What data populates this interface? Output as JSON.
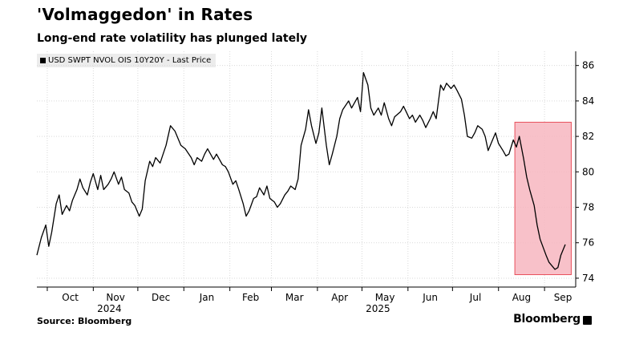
{
  "title": "'Volmaggedon' in Rates",
  "subtitle": "Long-end rate volatility has plunged lately",
  "source": "Source: Bloomberg",
  "brand": "Bloomberg",
  "colors": {
    "line": "#000000",
    "highlight": "#f7b6bf",
    "highlight_border": "#e8505b",
    "grid": "#d9d9d9"
  },
  "chart_data": {
    "type": "line",
    "legend": "USD SWPT NVOL OIS 10Y20Y - Last Price",
    "ylim": [
      73.5,
      86.8
    ],
    "y_ticks": [
      74,
      76,
      78,
      80,
      82,
      84,
      86
    ],
    "y_axis_side": "right",
    "grid": true,
    "x_ticks": [
      {
        "label": "Oct",
        "date": "2024-10-01"
      },
      {
        "label": "Nov",
        "date": "2024-11-01"
      },
      {
        "label": "Dec",
        "date": "2024-12-01"
      },
      {
        "label": "Jan",
        "date": "2025-01-01"
      },
      {
        "label": "Feb",
        "date": "2025-02-01"
      },
      {
        "label": "Mar",
        "date": "2025-03-01"
      },
      {
        "label": "Apr",
        "date": "2025-04-01"
      },
      {
        "label": "May",
        "date": "2025-05-01"
      },
      {
        "label": "Jun",
        "date": "2025-06-01"
      },
      {
        "label": "Jul",
        "date": "2025-07-01"
      },
      {
        "label": "Aug",
        "date": "2025-08-01"
      },
      {
        "label": "Sep",
        "date": "2025-09-01"
      }
    ],
    "year_labels": [
      {
        "label": "2024",
        "date": "2024-11-01"
      },
      {
        "label": "2025",
        "date": "2025-05-01"
      }
    ],
    "highlight": {
      "x_start": "2025-08-12",
      "x_end": "2025-09-19",
      "y_start": 74.2,
      "y_end": 82.8
    },
    "series": [
      {
        "values": [
          [
            "2024-09-24",
            75.3
          ],
          [
            "2024-09-27",
            76.3
          ],
          [
            "2024-09-30",
            77.0
          ],
          [
            "2024-10-02",
            75.8
          ],
          [
            "2024-10-04",
            76.6
          ],
          [
            "2024-10-07",
            78.2
          ],
          [
            "2024-10-09",
            78.7
          ],
          [
            "2024-10-11",
            77.6
          ],
          [
            "2024-10-14",
            78.1
          ],
          [
            "2024-10-16",
            77.8
          ],
          [
            "2024-10-18",
            78.4
          ],
          [
            "2024-10-21",
            79.0
          ],
          [
            "2024-10-23",
            79.6
          ],
          [
            "2024-10-25",
            79.1
          ],
          [
            "2024-10-28",
            78.7
          ],
          [
            "2024-10-30",
            79.4
          ],
          [
            "2024-11-01",
            79.9
          ],
          [
            "2024-11-04",
            79.0
          ],
          [
            "2024-11-06",
            79.8
          ],
          [
            "2024-11-08",
            79.0
          ],
          [
            "2024-11-11",
            79.3
          ],
          [
            "2024-11-13",
            79.6
          ],
          [
            "2024-11-15",
            80.0
          ],
          [
            "2024-11-18",
            79.3
          ],
          [
            "2024-11-20",
            79.7
          ],
          [
            "2024-11-22",
            79.0
          ],
          [
            "2024-11-25",
            78.8
          ],
          [
            "2024-11-27",
            78.3
          ],
          [
            "2024-11-29",
            78.1
          ],
          [
            "2024-12-02",
            77.5
          ],
          [
            "2024-12-04",
            77.9
          ],
          [
            "2024-12-06",
            79.5
          ],
          [
            "2024-12-09",
            80.6
          ],
          [
            "2024-12-11",
            80.3
          ],
          [
            "2024-12-13",
            80.8
          ],
          [
            "2024-12-16",
            80.5
          ],
          [
            "2024-12-18",
            81.0
          ],
          [
            "2024-12-20",
            81.5
          ],
          [
            "2024-12-23",
            82.6
          ],
          [
            "2024-12-26",
            82.3
          ],
          [
            "2024-12-30",
            81.5
          ],
          [
            "2025-01-02",
            81.3
          ],
          [
            "2025-01-06",
            80.8
          ],
          [
            "2025-01-08",
            80.4
          ],
          [
            "2025-01-10",
            80.8
          ],
          [
            "2025-01-13",
            80.6
          ],
          [
            "2025-01-15",
            81.0
          ],
          [
            "2025-01-17",
            81.3
          ],
          [
            "2025-01-21",
            80.7
          ],
          [
            "2025-01-23",
            81.0
          ],
          [
            "2025-01-27",
            80.4
          ],
          [
            "2025-01-29",
            80.3
          ],
          [
            "2025-01-31",
            80.0
          ],
          [
            "2025-02-03",
            79.3
          ],
          [
            "2025-02-05",
            79.5
          ],
          [
            "2025-02-07",
            79.0
          ],
          [
            "2025-02-10",
            78.2
          ],
          [
            "2025-02-12",
            77.5
          ],
          [
            "2025-02-14",
            77.8
          ],
          [
            "2025-02-17",
            78.5
          ],
          [
            "2025-02-19",
            78.6
          ],
          [
            "2025-02-21",
            79.1
          ],
          [
            "2025-02-24",
            78.7
          ],
          [
            "2025-02-26",
            79.2
          ],
          [
            "2025-02-28",
            78.5
          ],
          [
            "2025-03-03",
            78.3
          ],
          [
            "2025-03-05",
            78.0
          ],
          [
            "2025-03-07",
            78.2
          ],
          [
            "2025-03-10",
            78.7
          ],
          [
            "2025-03-12",
            78.9
          ],
          [
            "2025-03-14",
            79.2
          ],
          [
            "2025-03-17",
            79.0
          ],
          [
            "2025-03-19",
            79.6
          ],
          [
            "2025-03-21",
            81.5
          ],
          [
            "2025-03-24",
            82.4
          ],
          [
            "2025-03-26",
            83.5
          ],
          [
            "2025-03-28",
            82.6
          ],
          [
            "2025-03-31",
            81.6
          ],
          [
            "2025-04-02",
            82.2
          ],
          [
            "2025-04-04",
            83.6
          ],
          [
            "2025-04-07",
            81.5
          ],
          [
            "2025-04-09",
            80.4
          ],
          [
            "2025-04-11",
            81.0
          ],
          [
            "2025-04-14",
            82.0
          ],
          [
            "2025-04-16",
            83.0
          ],
          [
            "2025-04-18",
            83.5
          ],
          [
            "2025-04-22",
            84.0
          ],
          [
            "2025-04-24",
            83.6
          ],
          [
            "2025-04-28",
            84.2
          ],
          [
            "2025-04-30",
            83.4
          ],
          [
            "2025-05-02",
            85.6
          ],
          [
            "2025-05-05",
            84.9
          ],
          [
            "2025-05-07",
            83.6
          ],
          [
            "2025-05-09",
            83.2
          ],
          [
            "2025-05-12",
            83.6
          ],
          [
            "2025-05-14",
            83.2
          ],
          [
            "2025-05-16",
            83.9
          ],
          [
            "2025-05-19",
            83.0
          ],
          [
            "2025-05-21",
            82.6
          ],
          [
            "2025-05-23",
            83.1
          ],
          [
            "2025-05-27",
            83.4
          ],
          [
            "2025-05-29",
            83.7
          ],
          [
            "2025-06-02",
            83.0
          ],
          [
            "2025-06-04",
            83.2
          ],
          [
            "2025-06-06",
            82.8
          ],
          [
            "2025-06-09",
            83.2
          ],
          [
            "2025-06-11",
            82.9
          ],
          [
            "2025-06-13",
            82.5
          ],
          [
            "2025-06-16",
            83.0
          ],
          [
            "2025-06-18",
            83.4
          ],
          [
            "2025-06-20",
            83.0
          ],
          [
            "2025-06-23",
            84.9
          ],
          [
            "2025-06-25",
            84.6
          ],
          [
            "2025-06-27",
            85.0
          ],
          [
            "2025-06-30",
            84.7
          ],
          [
            "2025-07-02",
            84.9
          ],
          [
            "2025-07-04",
            84.6
          ],
          [
            "2025-07-07",
            84.1
          ],
          [
            "2025-07-09",
            83.2
          ],
          [
            "2025-07-11",
            82.0
          ],
          [
            "2025-07-14",
            81.9
          ],
          [
            "2025-07-16",
            82.2
          ],
          [
            "2025-07-18",
            82.6
          ],
          [
            "2025-07-21",
            82.4
          ],
          [
            "2025-07-23",
            82.0
          ],
          [
            "2025-07-25",
            81.2
          ],
          [
            "2025-07-28",
            81.8
          ],
          [
            "2025-07-30",
            82.2
          ],
          [
            "2025-08-01",
            81.6
          ],
          [
            "2025-08-04",
            81.2
          ],
          [
            "2025-08-06",
            80.9
          ],
          [
            "2025-08-08",
            81.0
          ],
          [
            "2025-08-11",
            81.8
          ],
          [
            "2025-08-13",
            81.4
          ],
          [
            "2025-08-15",
            82.0
          ],
          [
            "2025-08-18",
            80.7
          ],
          [
            "2025-08-20",
            79.7
          ],
          [
            "2025-08-22",
            79.0
          ],
          [
            "2025-08-25",
            78.1
          ],
          [
            "2025-08-27",
            77.0
          ],
          [
            "2025-08-29",
            76.2
          ],
          [
            "2025-09-02",
            75.3
          ],
          [
            "2025-09-04",
            74.9
          ],
          [
            "2025-09-08",
            74.5
          ],
          [
            "2025-09-10",
            74.6
          ],
          [
            "2025-09-12",
            75.3
          ],
          [
            "2025-09-15",
            75.9
          ]
        ]
      }
    ]
  }
}
